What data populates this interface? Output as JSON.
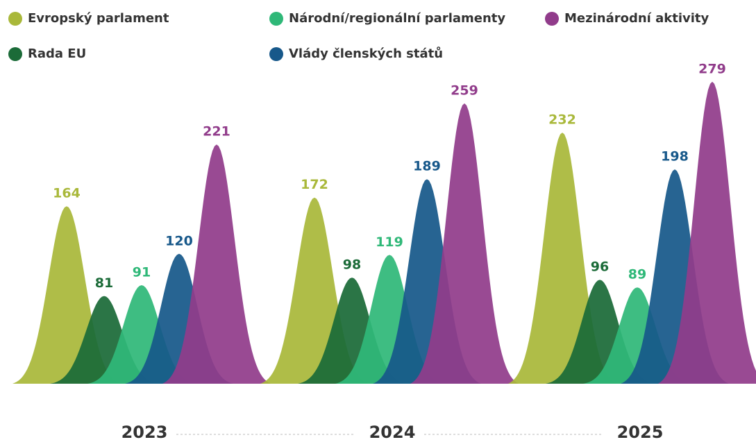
{
  "chart_data": {
    "type": "bar",
    "categories": [
      "2023",
      "2024",
      "2025"
    ],
    "series": [
      {
        "name": "Evropský parlament",
        "color": "#a9b83a",
        "values": [
          164,
          172,
          232
        ]
      },
      {
        "name": "Rada EU",
        "color": "#1b6b38",
        "values": [
          81,
          98,
          96
        ]
      },
      {
        "name": "Národní/regionální parlamenty",
        "color": "#2fb878",
        "values": [
          91,
          119,
          89
        ]
      },
      {
        "name": "Vlády členských států",
        "color": "#17588a",
        "values": [
          120,
          189,
          198
        ]
      },
      {
        "name": "Mezinárodní aktivity",
        "color": "#913c8b",
        "values": [
          221,
          259,
          279
        ]
      }
    ]
  }
}
